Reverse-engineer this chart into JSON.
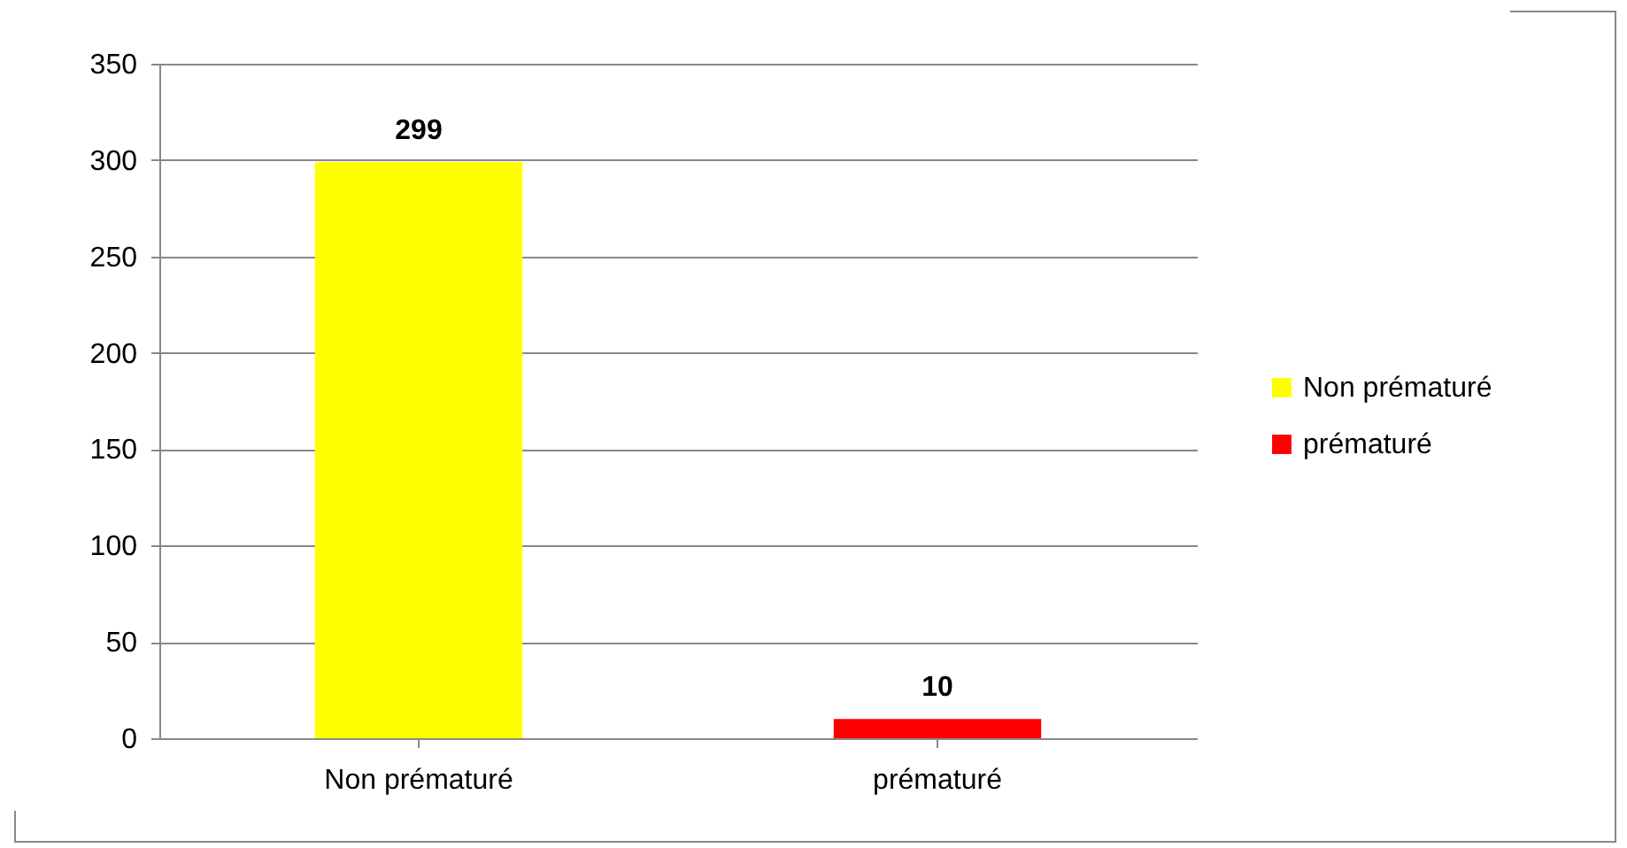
{
  "chart_data": {
    "type": "bar",
    "categories": [
      "Non prématuré",
      "prématuré"
    ],
    "series": [
      {
        "name": "Non prématuré",
        "color": "#ffff00",
        "values": [
          299,
          null
        ]
      },
      {
        "name": "prématuré",
        "color": "#ff0000",
        "values": [
          null,
          10
        ]
      }
    ],
    "ylim": [
      0,
      350
    ],
    "yticks": [
      0,
      50,
      100,
      150,
      200,
      250,
      300,
      350
    ],
    "grid": "y",
    "legend": "right",
    "data_labels": true
  }
}
